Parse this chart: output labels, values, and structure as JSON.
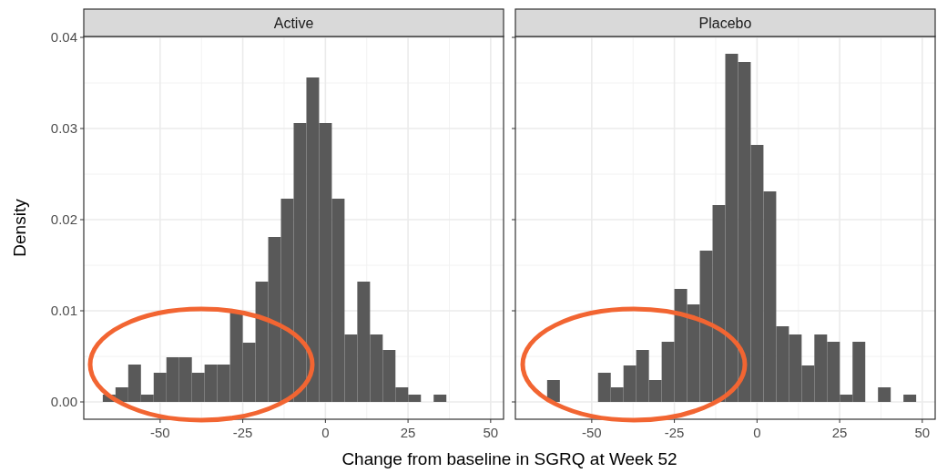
{
  "chart_data": [
    {
      "type": "histogram",
      "title": "Active",
      "xlabel": "Change from baseline in SGRQ at Week 52",
      "ylabel": "Density",
      "color": "#595959",
      "grid": true,
      "bins": [
        -67.35,
        -63.5,
        -59.65,
        -55.8,
        -51.95,
        -48.1,
        -44.25,
        -40.4,
        -36.55,
        -32.7,
        -28.85,
        -25,
        -21.15,
        -17.3,
        -13.45,
        -9.6,
        -5.75,
        -1.9,
        1.95,
        5.8,
        9.65,
        13.5,
        17.35,
        21.2,
        25.05,
        28.9,
        32.75,
        36.6,
        40.45,
        44.3,
        48.15
      ],
      "values": [
        0.0008,
        0.0016,
        0.0041,
        0.0008,
        0.0032,
        0.0049,
        0.0049,
        0.0032,
        0.0041,
        0.0041,
        0.0099,
        0.0065,
        0.0132,
        0.0181,
        0.0223,
        0.0306,
        0.0356,
        0.0306,
        0.0223,
        0.0074,
        0.0132,
        0.0074,
        0.0057,
        0.0016,
        0.0008,
        0,
        0.0008,
        0,
        0,
        0
      ],
      "xlim": [
        -73.1,
        53.9
      ],
      "xticks": [
        -50,
        -25,
        0,
        25,
        50
      ],
      "ylim": [
        -0.0019,
        0.0401
      ],
      "yticks": [
        {
          "value": 0,
          "label": "0.00"
        },
        {
          "value": 0.01,
          "label": "0.01"
        },
        {
          "value": 0.02,
          "label": "0.02"
        },
        {
          "value": 0.03,
          "label": "0.03"
        },
        {
          "value": 0.04,
          "label": "0.04"
        }
      ]
    },
    {
      "type": "histogram",
      "title": "Placebo",
      "color": "#595959",
      "grid": true,
      "tick_labels": "x",
      "bins": [
        -67.35,
        -63.5,
        -59.65,
        -55.8,
        -51.95,
        -48.1,
        -44.25,
        -40.4,
        -36.55,
        -32.7,
        -28.85,
        -25,
        -21.15,
        -17.3,
        -13.45,
        -9.6,
        -5.75,
        -1.9,
        1.95,
        5.8,
        9.65,
        13.5,
        17.35,
        21.2,
        25.05,
        28.9,
        32.75,
        36.6,
        40.45,
        44.3,
        48.15
      ],
      "values": [
        0,
        0.0024,
        0,
        0,
        0,
        0.0032,
        0.0016,
        0.004,
        0.0057,
        0.0024,
        0.0066,
        0.0124,
        0.0107,
        0.0166,
        0.0216,
        0.0382,
        0.0373,
        0.0282,
        0.0231,
        0.0083,
        0.0074,
        0.004,
        0.0074,
        0.0066,
        0.0008,
        0.0066,
        0,
        0.0016,
        0,
        0.0008
      ],
      "xlim": [
        -73.1,
        53.9
      ],
      "xticks": [
        -50,
        -25,
        0,
        25,
        50
      ],
      "ylim": [
        -0.0019,
        0.0401
      ],
      "yticks": [
        0,
        0.01,
        0.02,
        0.03,
        0.04
      ]
    }
  ]
}
